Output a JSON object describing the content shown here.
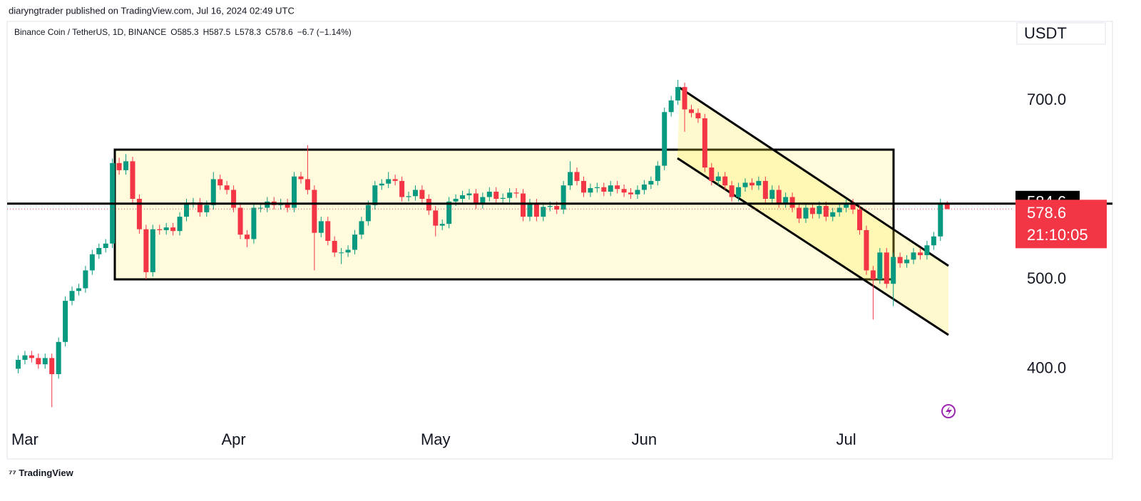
{
  "header": {
    "publisher": "diaryngtrader published on TradingView.com, Jul 16, 2024 02:49 UTC",
    "footer": "TradingView"
  },
  "chart_data": {
    "type": "candlestick",
    "symbol": "Binance Coin / TetherUS, 1D, BINANCE",
    "ohlc_labels": [
      "O",
      "H",
      "L",
      "C"
    ],
    "change": "−6.7 (−1.14%)",
    "currency": "USDT",
    "countdown": "21:10:05",
    "hline": 584.6,
    "up_color": "#089981",
    "down_color": "#f23645",
    "grid": false,
    "categories": [
      null,
      "Mar",
      null,
      null,
      null,
      null,
      null,
      null,
      null,
      null,
      null,
      null,
      null,
      null,
      null,
      null,
      null,
      null,
      null,
      null,
      null,
      null,
      null,
      null,
      null,
      null,
      null,
      null,
      null,
      null,
      null,
      null,
      "Apr",
      null,
      null,
      null,
      null,
      null,
      null,
      null,
      null,
      null,
      null,
      null,
      null,
      null,
      null,
      null,
      null,
      null,
      null,
      null,
      null,
      null,
      null,
      null,
      null,
      null,
      null,
      null,
      null,
      null,
      "May",
      null,
      null,
      null,
      null,
      null,
      null,
      null,
      null,
      null,
      null,
      null,
      null,
      null,
      null,
      null,
      null,
      null,
      null,
      null,
      null,
      null,
      null,
      null,
      null,
      null,
      null,
      null,
      null,
      null,
      null,
      "Jun",
      null,
      null,
      null,
      null,
      null,
      null,
      null,
      null,
      null,
      null,
      null,
      null,
      null,
      null,
      null,
      null,
      null,
      null,
      null,
      null,
      null,
      null,
      null,
      null,
      null,
      null,
      null,
      null,
      null,
      "Jul",
      null,
      null,
      null,
      null,
      null,
      null,
      null,
      null,
      null,
      null,
      null,
      null,
      null,
      null,
      null
    ],
    "open": [
      400,
      410,
      415,
      412,
      405,
      412,
      394,
      430,
      476,
      487,
      490,
      510,
      528,
      535,
      540,
      630,
      622,
      632,
      590,
      556,
      508,
      556,
      555,
      558,
      554,
      570,
      585,
      586,
      575,
      583,
      612,
      605,
      600,
      580,
      550,
      545,
      580,
      580,
      587,
      583,
      585,
      580,
      615,
      612,
      600,
      552,
      565,
      543,
      530,
      530,
      533,
      550,
      565,
      583,
      605,
      607,
      612,
      610,
      592,
      593,
      600,
      590,
      577,
      560,
      562,
      587,
      590,
      594,
      596,
      584,
      592,
      598,
      590,
      591,
      597,
      596,
      570,
      585,
      570,
      581,
      582,
      578,
      605,
      620,
      610,
      597,
      602,
      603,
      598,
      605,
      601,
      597,
      595,
      600,
      606,
      610,
      627,
      687,
      700,
      715,
      690,
      686,
      680,
      625,
      610,
      615,
      605,
      592,
      603,
      608,
      605,
      610,
      590,
      600,
      585,
      592,
      580,
      568,
      580,
      573,
      582,
      570,
      575,
      580,
      585,
      578,
      555,
      510,
      500,
      530,
      495,
      525,
      518,
      522,
      530,
      527,
      538,
      548,
      585.3
    ],
    "high": [
      415,
      420,
      420,
      417,
      417,
      417,
      435,
      481,
      492,
      495,
      515,
      533,
      540,
      545,
      635,
      636,
      640,
      637,
      595,
      561,
      561,
      561,
      563,
      563,
      575,
      590,
      591,
      591,
      588,
      620,
      617,
      610,
      605,
      585,
      555,
      585,
      585,
      592,
      592,
      590,
      590,
      620,
      620,
      650,
      605,
      570,
      570,
      548,
      535,
      538,
      555,
      570,
      588,
      610,
      612,
      620,
      617,
      615,
      598,
      605,
      605,
      595,
      582,
      567,
      592,
      595,
      599,
      601,
      601,
      597,
      603,
      603,
      596,
      602,
      602,
      601,
      590,
      590,
      586,
      587,
      587,
      610,
      632,
      625,
      615,
      607,
      608,
      608,
      610,
      610,
      606,
      602,
      605,
      611,
      615,
      632,
      692,
      705,
      723,
      720,
      695,
      691,
      685,
      630,
      620,
      620,
      610,
      608,
      613,
      613,
      615,
      615,
      605,
      605,
      597,
      597,
      585,
      585,
      585,
      587,
      587,
      580,
      585,
      590,
      590,
      583,
      560,
      515,
      535,
      535,
      530,
      530,
      527,
      535,
      535,
      543,
      553,
      590,
      587.5
    ],
    "low": [
      395,
      405,
      407,
      400,
      400,
      357,
      389,
      425,
      471,
      482,
      485,
      505,
      523,
      530,
      535,
      617,
      617,
      585,
      551,
      500,
      503,
      550,
      550,
      549,
      549,
      565,
      580,
      570,
      570,
      578,
      600,
      595,
      575,
      545,
      536,
      540,
      575,
      575,
      578,
      578,
      575,
      575,
      607,
      595,
      510,
      547,
      538,
      525,
      517,
      525,
      528,
      545,
      560,
      578,
      600,
      602,
      605,
      587,
      587,
      588,
      585,
      572,
      548,
      555,
      557,
      582,
      585,
      589,
      579,
      579,
      587,
      585,
      585,
      586,
      591,
      565,
      565,
      565,
      565,
      576,
      573,
      573,
      600,
      605,
      592,
      592,
      597,
      593,
      593,
      596,
      592,
      590,
      590,
      595,
      601,
      605,
      622,
      682,
      695,
      665,
      681,
      675,
      620,
      605,
      605,
      600,
      587,
      587,
      598,
      600,
      600,
      585,
      585,
      580,
      580,
      575,
      563,
      563,
      568,
      568,
      565,
      565,
      570,
      575,
      573,
      550,
      505,
      455,
      495,
      490,
      470,
      513,
      513,
      517,
      522,
      522,
      533,
      543,
      578.3
    ],
    "close": [
      410,
      415,
      412,
      405,
      412,
      394,
      430,
      476,
      487,
      490,
      510,
      528,
      535,
      540,
      630,
      622,
      632,
      590,
      556,
      508,
      556,
      555,
      558,
      554,
      570,
      585,
      586,
      575,
      583,
      612,
      605,
      600,
      580,
      550,
      545,
      580,
      580,
      587,
      583,
      585,
      580,
      615,
      612,
      600,
      552,
      565,
      543,
      530,
      530,
      533,
      550,
      565,
      583,
      605,
      607,
      612,
      610,
      592,
      593,
      600,
      590,
      577,
      560,
      562,
      587,
      590,
      594,
      596,
      584,
      592,
      598,
      590,
      591,
      597,
      596,
      570,
      585,
      570,
      581,
      582,
      578,
      605,
      620,
      610,
      597,
      602,
      603,
      598,
      605,
      601,
      597,
      595,
      600,
      606,
      610,
      627,
      687,
      700,
      715,
      690,
      686,
      680,
      625,
      610,
      615,
      605,
      592,
      603,
      608,
      605,
      610,
      590,
      600,
      585,
      592,
      580,
      568,
      580,
      573,
      582,
      570,
      575,
      580,
      585,
      578,
      555,
      510,
      500,
      530,
      495,
      525,
      518,
      522,
      530,
      527,
      538,
      548,
      585.3,
      578.6
    ],
    "ylim": [
      342.2,
      788.4
    ],
    "yticks": [
      {
        "value": 400,
        "label": "400.0"
      },
      {
        "value": 500,
        "label": "500.0"
      },
      {
        "value": 700,
        "label": "700.0"
      }
    ]
  }
}
